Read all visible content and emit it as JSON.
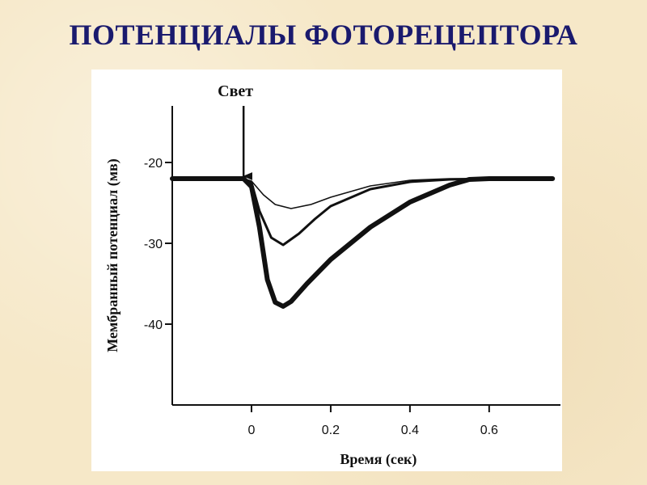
{
  "slide": {
    "title": "ПОТЕНЦИАЛЫ ФОТОРЕЦЕПТОРА"
  },
  "chart_data": {
    "type": "line",
    "title": "",
    "xlabel": "Время (сек)",
    "ylabel": "Мембранный потенциал (мв)",
    "xlim": [
      -0.2,
      0.78
    ],
    "ylim": [
      -50,
      -13
    ],
    "x_ticks": [
      0,
      0.2,
      0.4,
      0.6
    ],
    "x_tick_labels": [
      "0",
      "0.2",
      "0.4",
      "0.6"
    ],
    "y_ticks": [
      -20,
      -30,
      -40
    ],
    "y_tick_labels": [
      "-20",
      "-30",
      "-40"
    ],
    "grid": false,
    "annotation": {
      "text": "Свет",
      "x": -0.02
    },
    "series": [
      {
        "stroke": "thin",
        "x": [
          -0.2,
          -0.02,
          0.0,
          0.03,
          0.06,
          0.1,
          0.15,
          0.2,
          0.3,
          0.4,
          0.5,
          0.6,
          0.76
        ],
        "y": [
          -22,
          -22,
          -22.3,
          -24,
          -25.2,
          -25.7,
          -25.2,
          -24.3,
          -22.9,
          -22.2,
          -22,
          -22,
          -22
        ]
      },
      {
        "stroke": "medium",
        "x": [
          -0.2,
          -0.02,
          0.0,
          0.02,
          0.05,
          0.08,
          0.12,
          0.16,
          0.2,
          0.3,
          0.4,
          0.5,
          0.6,
          0.76
        ],
        "y": [
          -22,
          -22,
          -22.5,
          -26,
          -29.3,
          -30.2,
          -28.8,
          -27,
          -25.4,
          -23.3,
          -22.4,
          -22.1,
          -22,
          -22
        ]
      },
      {
        "stroke": "thick",
        "x": [
          -0.2,
          -0.02,
          0.0,
          0.02,
          0.04,
          0.06,
          0.08,
          0.1,
          0.14,
          0.2,
          0.3,
          0.4,
          0.5,
          0.55,
          0.6,
          0.76
        ],
        "y": [
          -22,
          -22,
          -23,
          -28,
          -34.5,
          -37.3,
          -37.8,
          -37.2,
          -35,
          -32,
          -28,
          -24.9,
          -22.8,
          -22.1,
          -22,
          -22
        ]
      }
    ]
  }
}
